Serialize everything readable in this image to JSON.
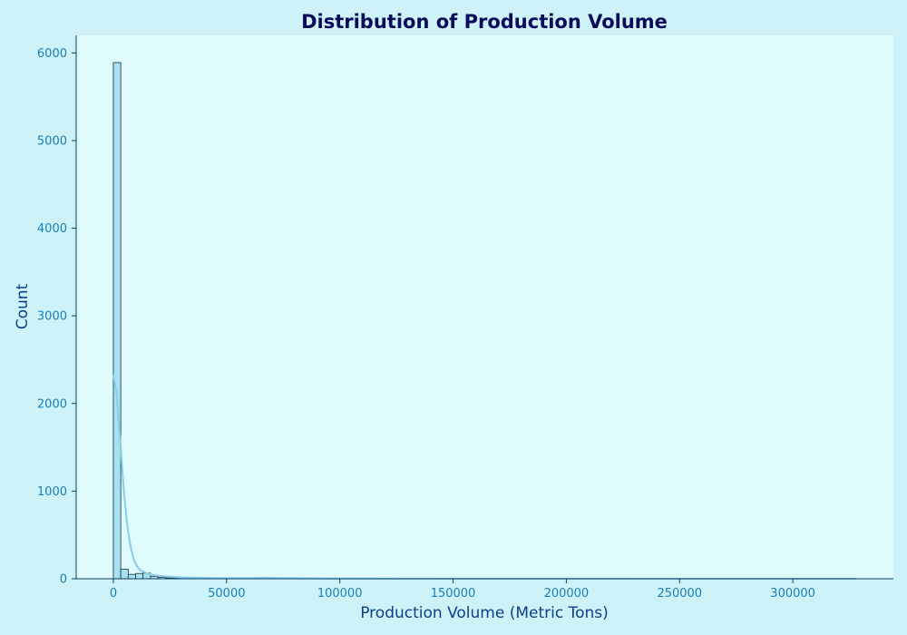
{
  "colors": {
    "figure_background": "#cdf2f8",
    "plot_background": "#e0fbfc",
    "bar_fill": "#a8e1f0",
    "bar_edge": "#1a2f3a",
    "kde_line": "#87cde8",
    "axis_line": "#0b3f6a",
    "title": "#0a0a5a",
    "axis_label": "#0b3f8a",
    "tick_label": "#1a7fb5"
  },
  "chart_data": {
    "type": "bar",
    "subtype": "histogram",
    "title": "Distribution of Production Volume",
    "xlabel": "Production Volume (Metric Tons)",
    "ylabel": "Count",
    "xlim": [
      -16400,
      344400
    ],
    "ylim": [
      0,
      6200
    ],
    "xticks": [
      0,
      50000,
      100000,
      150000,
      200000,
      250000,
      300000
    ],
    "yticks": [
      0,
      1000,
      2000,
      3000,
      4000,
      5000,
      6000
    ],
    "grid": false,
    "legend": "none",
    "bin_width": 3280,
    "bins_start": 0,
    "counts": [
      5890,
      110,
      50,
      60,
      65,
      25,
      15,
      10,
      8,
      5,
      5,
      4,
      4,
      3,
      3,
      3,
      3,
      2,
      3,
      4,
      8,
      10,
      5,
      3,
      3,
      2,
      2,
      2,
      1,
      1,
      1,
      1,
      1,
      1,
      1,
      1
    ],
    "kde": {
      "x": [
        0,
        1500,
        3000,
        4500,
        6000,
        7500,
        9000,
        10500,
        12000,
        15000,
        18000,
        22000,
        30000,
        40000,
        50000,
        60000,
        66000,
        72000,
        85000,
        100000,
        150000,
        200000,
        250000,
        300000,
        328000
      ],
      "y": [
        2330,
        2100,
        1600,
        1050,
        640,
        380,
        220,
        140,
        95,
        60,
        40,
        28,
        16,
        10,
        7,
        8,
        12,
        9,
        5,
        3,
        1,
        1,
        0,
        0,
        0
      ]
    }
  }
}
